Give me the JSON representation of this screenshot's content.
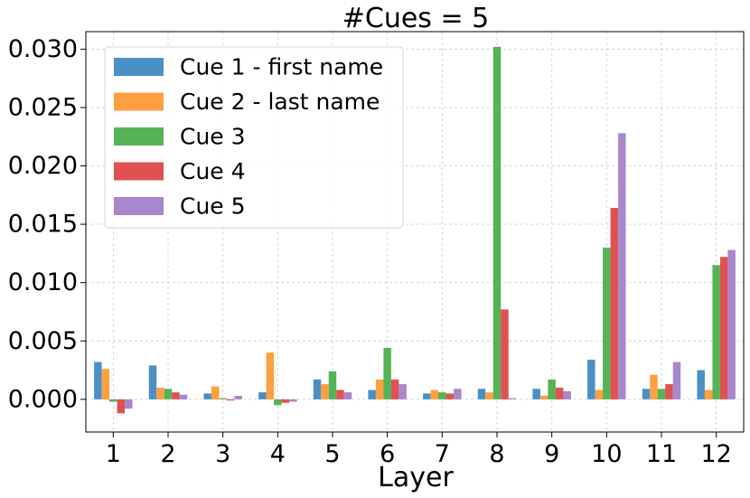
{
  "chart_data": {
    "type": "bar",
    "title": "#Cues = 5",
    "xlabel": "Layer",
    "ylabel": "",
    "ylim": [
      -0.0028,
      0.0315
    ],
    "yticks": [
      "0.000",
      "0.005",
      "0.010",
      "0.015",
      "0.020",
      "0.025",
      "0.030"
    ],
    "categories": [
      "1",
      "2",
      "3",
      "4",
      "5",
      "6",
      "7",
      "8",
      "9",
      "10",
      "11",
      "12"
    ],
    "grid": true,
    "legend_position": "top-left",
    "series": [
      {
        "name": "Cue 1 - first name",
        "color": "#4a90c4",
        "values": [
          0.0032,
          0.0029,
          0.0005,
          0.0006,
          0.0017,
          0.0008,
          0.0005,
          0.0009,
          0.0009,
          0.0034,
          0.0009,
          0.0025
        ]
      },
      {
        "name": "Cue 2 - last name",
        "color": "#ff9f40",
        "values": [
          0.0026,
          0.001,
          0.0011,
          0.004,
          0.0013,
          0.0017,
          0.0008,
          0.0006,
          0.0003,
          0.0008,
          0.0021,
          0.0008
        ]
      },
      {
        "name": "Cue 3",
        "color": "#55b355",
        "values": [
          -0.0002,
          0.0009,
          0.0001,
          -0.0005,
          0.0024,
          0.0044,
          0.0006,
          0.0302,
          0.0017,
          0.013,
          0.0009,
          0.0115
        ]
      },
      {
        "name": "Cue 4",
        "color": "#e05252",
        "values": [
          -0.0012,
          0.0006,
          -0.0001,
          -0.0003,
          0.0008,
          0.0017,
          0.0005,
          0.0077,
          0.001,
          0.0164,
          0.0013,
          0.0122
        ]
      },
      {
        "name": "Cue 5",
        "color": "#a887cc",
        "values": [
          -0.0008,
          0.0004,
          0.0003,
          -0.0002,
          0.0006,
          0.0013,
          0.0009,
          0.0001,
          0.0007,
          0.0228,
          0.0032,
          0.0128
        ]
      }
    ]
  }
}
